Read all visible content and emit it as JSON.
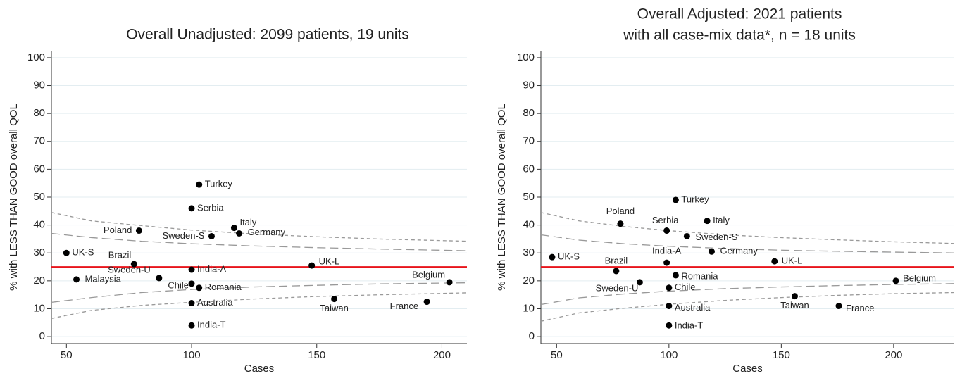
{
  "chart_data": [
    {
      "type": "scatter",
      "title": [
        "Overall Unadjusted:  2099 patients, 19 units"
      ],
      "xlabel": "Cases",
      "ylabel": "% with LESS THAN GOOD overall QOL",
      "xlim": [
        44,
        210
      ],
      "ylim": [
        -2.5,
        102.5
      ],
      "xticks": [
        50,
        100,
        150,
        200
      ],
      "yticks": [
        0,
        10,
        20,
        30,
        40,
        50,
        60,
        70,
        80,
        90,
        100
      ],
      "grid": true,
      "color": "#000000",
      "point_labels": [
        "UK-S",
        "Malaysia",
        "Brazil",
        "Poland",
        "Sweden-U",
        "Chile",
        "India-A",
        "Australia",
        "India-T",
        "Serbia",
        "Romania",
        "Turkey",
        "Sweden-S",
        "Italy",
        "Germany",
        "UK-L",
        "Taiwan",
        "France",
        "Belgium"
      ],
      "x": [
        50,
        54,
        77,
        79,
        87,
        100,
        100,
        100,
        100,
        100,
        103,
        103,
        108,
        117,
        119,
        148,
        157,
        194,
        203
      ],
      "values": [
        30,
        20.5,
        26,
        38,
        21,
        19,
        24,
        12,
        4,
        46,
        17.5,
        54.5,
        36,
        39,
        37,
        25.5,
        13.5,
        12.5,
        19.5
      ],
      "reference_value": 25,
      "reference_color": "#e8141b",
      "funnel_lines": [
        {
          "dash": "long",
          "color": "#999999",
          "x": [
            44,
            60,
            80,
            100,
            125,
            150,
            175,
            210
          ],
          "values": [
            37,
            35.5,
            34.2,
            33.3,
            32.5,
            31.9,
            31.4,
            30.8
          ]
        },
        {
          "dash": "long",
          "color": "#999999",
          "x": [
            44,
            60,
            80,
            100,
            125,
            150,
            175,
            210
          ],
          "values": [
            12.3,
            14,
            15.8,
            16.9,
            17.8,
            18.4,
            18.9,
            19.3
          ]
        },
        {
          "dash": "short",
          "color": "#999999",
          "x": [
            44,
            60,
            80,
            100,
            125,
            150,
            175,
            210
          ],
          "values": [
            44.5,
            41.5,
            39.8,
            38.2,
            36.8,
            35.8,
            35,
            34.2
          ]
        },
        {
          "dash": "short",
          "color": "#999999",
          "x": [
            44,
            60,
            80,
            100,
            125,
            150,
            175,
            210
          ],
          "values": [
            6.5,
            9.4,
            11.2,
            12.3,
            13.5,
            14.4,
            15,
            15.7
          ]
        }
      ]
    },
    {
      "type": "scatter",
      "title": [
        "Overall Adjusted: 2021 patients",
        "with all case-mix data*, n = 18 units"
      ],
      "xlabel": "Cases",
      "ylabel": "% with LESS THAN GOOD overall QOL",
      "xlim": [
        43,
        227
      ],
      "ylim": [
        -2.5,
        102.5
      ],
      "xticks": [
        50,
        100,
        150,
        200
      ],
      "yticks": [
        0,
        10,
        20,
        30,
        40,
        50,
        60,
        70,
        80,
        90,
        100
      ],
      "grid": true,
      "color": "#000000",
      "point_labels": [
        "UK-S",
        "Poland",
        "Serbia",
        "Turkey",
        "Italy",
        "Sweden-S",
        "Germany",
        "India-A",
        "Brazil",
        "Romania",
        "Sweden-U",
        "Chile",
        "Australia",
        "India-T",
        "UK-L",
        "Taiwan",
        "France",
        "Belgium"
      ],
      "x": [
        48,
        78.4,
        99,
        103,
        117,
        108,
        119,
        99,
        76.5,
        103,
        87,
        100,
        100,
        100,
        147,
        156,
        175.6,
        201
      ],
      "values": [
        28.5,
        40.5,
        38,
        49,
        41.5,
        36,
        30.5,
        26.5,
        23.5,
        22,
        19.5,
        17.5,
        11,
        4,
        27,
        14.5,
        11,
        20
      ],
      "reference_value": 25,
      "reference_color": "#e8141b",
      "funnel_lines": [
        {
          "dash": "long",
          "color": "#999999",
          "x": [
            43,
            60,
            80,
            100,
            125,
            150,
            175,
            200,
            227
          ],
          "values": [
            36.5,
            34.6,
            33.3,
            32.4,
            31.6,
            31,
            30.6,
            30.3,
            30
          ]
        },
        {
          "dash": "long",
          "color": "#999999",
          "x": [
            43,
            60,
            80,
            100,
            125,
            150,
            175,
            200,
            227
          ],
          "values": [
            11.5,
            13.9,
            15.3,
            16.3,
            17.2,
            17.8,
            18.3,
            18.7,
            19
          ]
        },
        {
          "dash": "short",
          "color": "#999999",
          "x": [
            43,
            60,
            80,
            100,
            125,
            150,
            175,
            200,
            227
          ],
          "values": [
            44.5,
            41.5,
            39.5,
            38,
            36.5,
            35.5,
            34.7,
            34,
            33.4
          ]
        },
        {
          "dash": "short",
          "color": "#999999",
          "x": [
            43,
            60,
            80,
            100,
            125,
            150,
            175,
            200,
            227
          ],
          "values": [
            5.5,
            8.5,
            10.2,
            11.6,
            13,
            14,
            14.8,
            15.4,
            15.8
          ]
        }
      ]
    }
  ]
}
